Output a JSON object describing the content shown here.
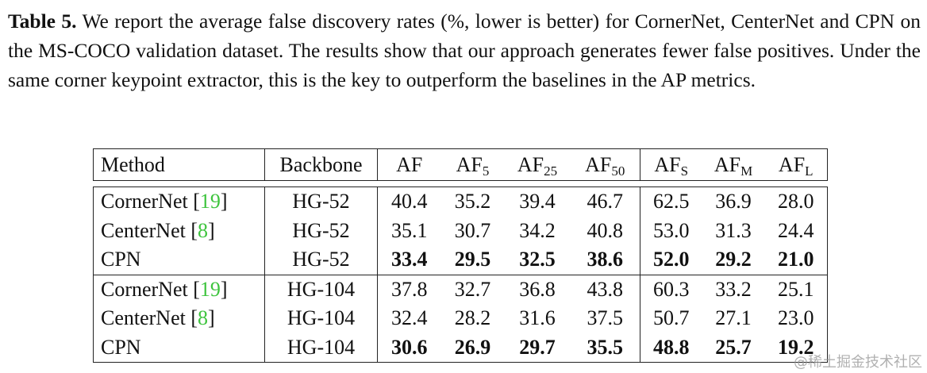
{
  "caption": {
    "label": "Table 5.",
    "text": "We report the average false discovery rates (%, lower is better) for CornerNet, CenterNet and CPN on the MS-COCO validation dataset. The results show that our approach generates fewer false positives. Under the same corner keypoint extractor, this is the key to outperform the baselines in the AP metrics."
  },
  "table": {
    "headers": [
      {
        "main": "Method"
      },
      {
        "main": "Backbone"
      },
      {
        "main": "AF",
        "sub": ""
      },
      {
        "main": "AF",
        "sub": "5"
      },
      {
        "main": "AF",
        "sub": "25"
      },
      {
        "main": "AF",
        "sub": "50"
      },
      {
        "main": "AF",
        "sub": "S"
      },
      {
        "main": "AF",
        "sub": "M"
      },
      {
        "main": "AF",
        "sub": "L"
      }
    ],
    "rows": [
      {
        "method": "CornerNet",
        "cite": "19",
        "backbone": "HG-52",
        "values": [
          "40.4",
          "35.2",
          "39.4",
          "46.7",
          "62.5",
          "36.9",
          "28.0"
        ],
        "bold": false
      },
      {
        "method": "CenterNet",
        "cite": "8",
        "backbone": "HG-52",
        "values": [
          "35.1",
          "30.7",
          "34.2",
          "40.8",
          "53.0",
          "31.3",
          "24.4"
        ],
        "bold": false
      },
      {
        "method": "CPN",
        "cite": "",
        "backbone": "HG-52",
        "values": [
          "33.4",
          "29.5",
          "32.5",
          "38.6",
          "52.0",
          "29.2",
          "21.0"
        ],
        "bold": true
      },
      {
        "method": "CornerNet",
        "cite": "19",
        "backbone": "HG-104",
        "values": [
          "37.8",
          "32.7",
          "36.8",
          "43.8",
          "60.3",
          "33.2",
          "25.1"
        ],
        "bold": false
      },
      {
        "method": "CenterNet",
        "cite": "8",
        "backbone": "HG-104",
        "values": [
          "32.4",
          "28.2",
          "31.6",
          "37.5",
          "50.7",
          "27.1",
          "23.0"
        ],
        "bold": false
      },
      {
        "method": "CPN",
        "cite": "",
        "backbone": "HG-104",
        "values": [
          "30.6",
          "26.9",
          "29.7",
          "35.5",
          "48.8",
          "25.7",
          "19.2"
        ],
        "bold": true
      }
    ]
  },
  "watermark": "@稀土掘金技术社区",
  "colors": {
    "cite": "#3ec43e",
    "text": "#111111"
  }
}
